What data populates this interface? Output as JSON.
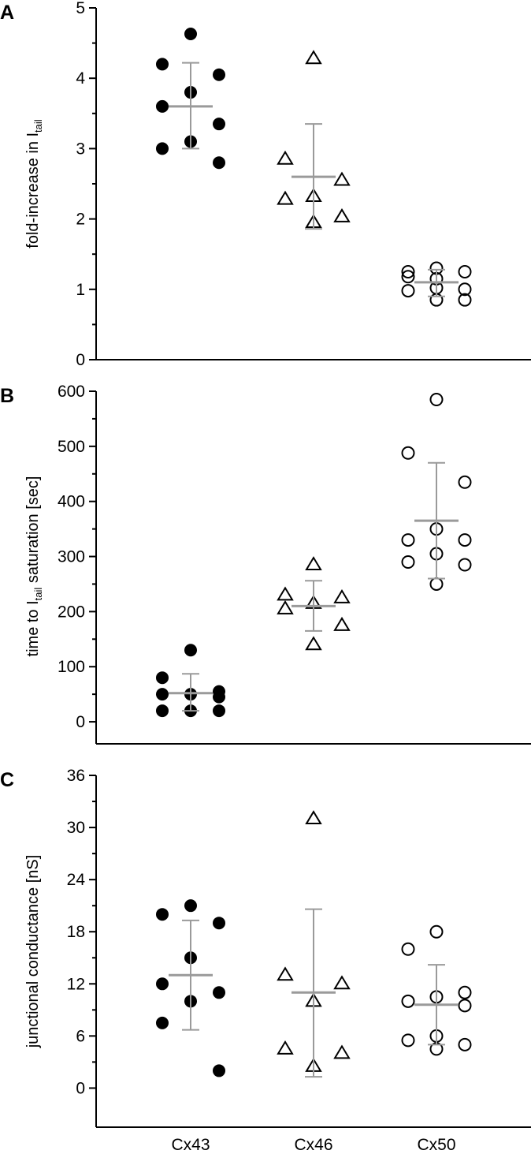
{
  "categories": [
    "Cx43",
    "Cx46",
    "Cx50"
  ],
  "colors": {
    "marker": "#000000",
    "summary": "#9a9a9a",
    "axis": "#000000"
  },
  "chart_data": [
    {
      "type": "scatter",
      "panel": "A",
      "ylabel": {
        "main": "fold-increase in I",
        "sub": "tail"
      },
      "ylim": [
        0,
        5
      ],
      "ticks": [
        "0",
        "1",
        "2",
        "3",
        "4",
        "5"
      ],
      "categories": [
        "Cx43",
        "Cx46",
        "Cx50"
      ],
      "series": [
        {
          "category": "Cx43",
          "marker": "filled-circle",
          "points": [
            [
              -0.3,
              4.2
            ],
            [
              -0.3,
              3.6
            ],
            [
              -0.3,
              3.0
            ],
            [
              0.0,
              4.63
            ],
            [
              0.0,
              3.8
            ],
            [
              0.0,
              3.1
            ],
            [
              0.3,
              4.05
            ],
            [
              0.3,
              3.35
            ],
            [
              0.3,
              2.8
            ]
          ],
          "mean": 3.6,
          "sd_low": 3.0,
          "sd_high": 4.22
        },
        {
          "category": "Cx46",
          "marker": "open-triangle",
          "points": [
            [
              -0.3,
              2.85
            ],
            [
              -0.3,
              2.28
            ],
            [
              0.0,
              4.28
            ],
            [
              0.0,
              2.32
            ],
            [
              0.0,
              1.95
            ],
            [
              0.3,
              2.55
            ],
            [
              0.3,
              2.03
            ]
          ],
          "mean": 2.6,
          "sd_low": 1.86,
          "sd_high": 3.35
        },
        {
          "category": "Cx50",
          "marker": "open-circle",
          "points": [
            [
              -0.3,
              1.25
            ],
            [
              -0.3,
              1.18
            ],
            [
              -0.3,
              0.98
            ],
            [
              0.0,
              1.3
            ],
            [
              0.0,
              1.15
            ],
            [
              0.0,
              1.02
            ],
            [
              0.0,
              0.85
            ],
            [
              0.3,
              1.25
            ],
            [
              0.3,
              1.0
            ],
            [
              0.3,
              0.85
            ]
          ],
          "mean": 1.1,
          "sd_low": 0.9,
          "sd_high": 1.28
        }
      ]
    },
    {
      "type": "scatter",
      "panel": "B",
      "ylabel": {
        "main": "time to I",
        "sub": "tail",
        "rest": " saturation [sec]"
      },
      "ylim": [
        -40,
        600
      ],
      "ticks": [
        "0",
        "100",
        "200",
        "300",
        "400",
        "500",
        "600"
      ],
      "categories": [
        "Cx43",
        "Cx46",
        "Cx50"
      ],
      "series": [
        {
          "category": "Cx43",
          "marker": "filled-circle",
          "points": [
            [
              -0.3,
              80
            ],
            [
              -0.3,
              50
            ],
            [
              -0.3,
              20
            ],
            [
              0.0,
              130
            ],
            [
              0.0,
              50
            ],
            [
              0.0,
              20
            ],
            [
              0.3,
              55
            ],
            [
              0.3,
              45
            ],
            [
              0.3,
              20
            ]
          ],
          "mean": 52,
          "sd_low": 20,
          "sd_high": 87
        },
        {
          "category": "Cx46",
          "marker": "open-triangle",
          "points": [
            [
              -0.3,
              230
            ],
            [
              -0.3,
              205
            ],
            [
              0.0,
              285
            ],
            [
              0.0,
              215
            ],
            [
              0.0,
              140
            ],
            [
              0.3,
              225
            ],
            [
              0.3,
              175
            ]
          ],
          "mean": 210,
          "sd_low": 165,
          "sd_high": 256
        },
        {
          "category": "Cx50",
          "marker": "open-circle",
          "points": [
            [
              -0.3,
              488
            ],
            [
              -0.3,
              330
            ],
            [
              -0.3,
              290
            ],
            [
              0.0,
              585
            ],
            [
              0.0,
              350
            ],
            [
              0.0,
              305
            ],
            [
              0.0,
              250
            ],
            [
              0.3,
              435
            ],
            [
              0.3,
              330
            ],
            [
              0.3,
              285
            ]
          ],
          "mean": 365,
          "sd_low": 260,
          "sd_high": 470
        }
      ]
    },
    {
      "type": "scatter",
      "panel": "C",
      "ylabel": {
        "main": "junctional conductance [nS]"
      },
      "ylim": [
        -4.5,
        36
      ],
      "ticks": [
        "0",
        "6",
        "12",
        "18",
        "24",
        "30",
        "36"
      ],
      "categories": [
        "Cx43",
        "Cx46",
        "Cx50"
      ],
      "series": [
        {
          "category": "Cx43",
          "marker": "filled-circle",
          "points": [
            [
              -0.3,
              20
            ],
            [
              -0.3,
              12
            ],
            [
              -0.3,
              7.5
            ],
            [
              0.0,
              21
            ],
            [
              0.0,
              15
            ],
            [
              0.0,
              10
            ],
            [
              0.3,
              19
            ],
            [
              0.3,
              11
            ],
            [
              0.3,
              2
            ]
          ],
          "mean": 13,
          "sd_low": 6.7,
          "sd_high": 19.3
        },
        {
          "category": "Cx46",
          "marker": "open-triangle",
          "points": [
            [
              -0.3,
              13
            ],
            [
              -0.3,
              4.5
            ],
            [
              0.0,
              31
            ],
            [
              0.0,
              10
            ],
            [
              0.0,
              2.5
            ],
            [
              0.3,
              12
            ],
            [
              0.3,
              4
            ]
          ],
          "mean": 11,
          "sd_low": 1.3,
          "sd_high": 20.6
        },
        {
          "category": "Cx50",
          "marker": "open-circle",
          "points": [
            [
              -0.3,
              16
            ],
            [
              -0.3,
              10
            ],
            [
              -0.3,
              5.5
            ],
            [
              0.0,
              18
            ],
            [
              0.0,
              10.5
            ],
            [
              0.0,
              6
            ],
            [
              0.0,
              4.5
            ],
            [
              0.3,
              11
            ],
            [
              0.3,
              9.5
            ],
            [
              0.3,
              5
            ]
          ],
          "mean": 9.6,
          "sd_low": 5,
          "sd_high": 14.2
        }
      ]
    }
  ]
}
